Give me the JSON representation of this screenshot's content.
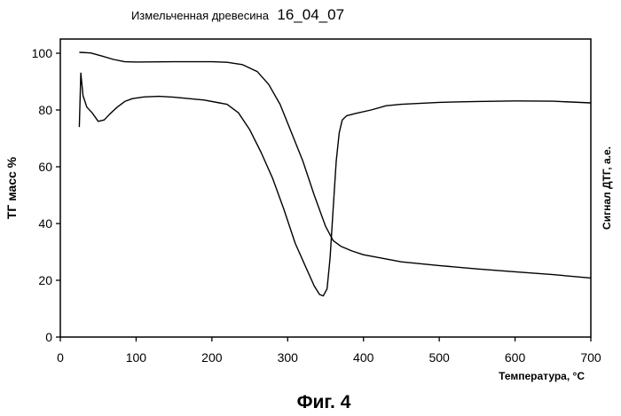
{
  "chart_data": {
    "type": "line",
    "title": "Измельченная древесина",
    "title_suffix": "16_04_07",
    "xlabel": "Температура, °C",
    "ylabel": "ТГ масс %",
    "y2label": "Сигнал ДТГ, а.е.",
    "caption": "Фиг. 4",
    "xlim": [
      0,
      700
    ],
    "ylim": [
      0,
      105
    ],
    "x_ticks": [
      0,
      100,
      200,
      300,
      400,
      500,
      600,
      700
    ],
    "y_ticks": [
      0,
      20,
      40,
      60,
      80,
      100
    ],
    "grid": false,
    "line_color": "#000000",
    "series": [
      {
        "name": "ТГ",
        "x": [
          25,
          40,
          55,
          70,
          85,
          100,
          150,
          200,
          220,
          240,
          260,
          275,
          290,
          305,
          320,
          335,
          350,
          360,
          370,
          385,
          400,
          450,
          500,
          550,
          600,
          650,
          700
        ],
        "y": [
          100.3,
          100.1,
          99,
          97.8,
          97,
          96.9,
          97,
          97,
          96.8,
          96,
          93.5,
          89,
          82,
          72,
          62,
          50,
          39,
          34,
          32,
          30.3,
          29,
          26.5,
          25.2,
          24,
          23,
          22,
          20.8
        ]
      },
      {
        "name": "ДТГ",
        "x": [
          25,
          27,
          30,
          35,
          42,
          50,
          58,
          65,
          75,
          85,
          95,
          110,
          130,
          150,
          170,
          190,
          210,
          220,
          235,
          250,
          265,
          280,
          295,
          310,
          325,
          335,
          342,
          347,
          352,
          356,
          360,
          364,
          368,
          372,
          378,
          390,
          410,
          430,
          450,
          500,
          550,
          600,
          650,
          700
        ],
        "y": [
          74,
          93,
          85,
          81,
          79,
          76,
          76.5,
          78.5,
          81,
          83,
          84,
          84.6,
          84.8,
          84.5,
          84,
          83.5,
          82.5,
          82,
          79,
          73,
          65,
          56,
          45,
          33,
          24,
          18,
          15,
          14.5,
          17,
          28,
          45,
          62,
          72,
          76.5,
          78,
          78.8,
          80,
          81.5,
          82,
          82.7,
          83,
          83.2,
          83.1,
          82.5
        ]
      }
    ]
  }
}
